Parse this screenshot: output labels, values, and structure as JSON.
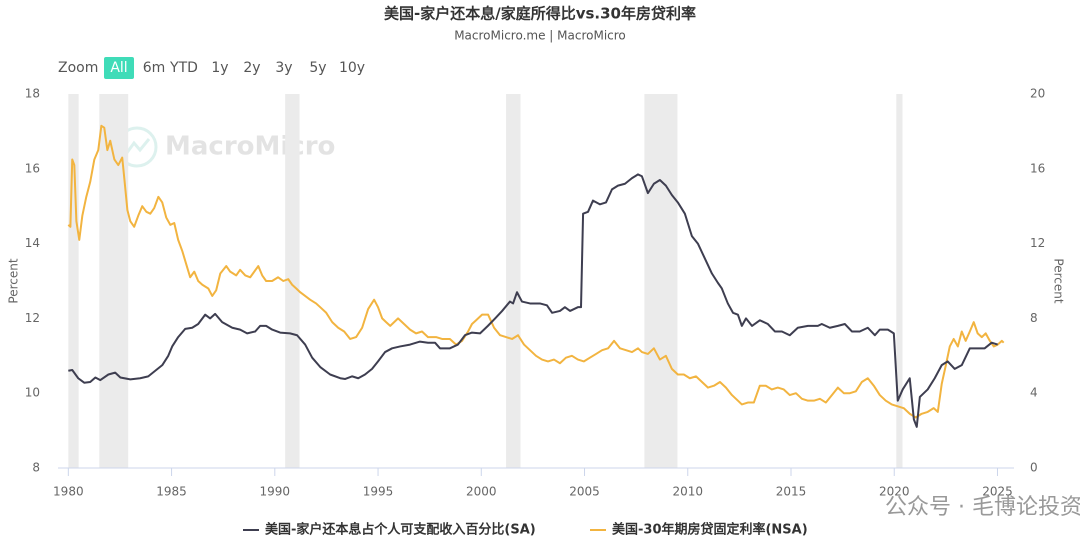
{
  "chart_data": {
    "type": "line",
    "title": "美国-家户还本息/家庭所得比vs.30年房贷利率",
    "subtitle": "MacroMicro.me | MacroMicro",
    "range_selector": {
      "label": "Zoom",
      "buttons": [
        "All",
        "6m",
        "YTD",
        "1y",
        "2y",
        "3y",
        "5y",
        "10y"
      ],
      "selected": 0
    },
    "watermarks": [
      "MacroMicro",
      "公众号 · 毛博论投资"
    ],
    "y_label": "Percent",
    "y2_label": "Percent",
    "xlim": [
      1979.5,
      2025.8
    ],
    "xticks": [
      1980,
      1985,
      1990,
      1995,
      2000,
      2005,
      2010,
      2015,
      2020,
      2025
    ],
    "ylim": [
      8,
      18
    ],
    "yticks": [
      8,
      10,
      12,
      14,
      16,
      18
    ],
    "y2lim": [
      0,
      20
    ],
    "y2ticks": [
      0,
      4,
      8,
      12,
      16,
      20
    ],
    "grid": false,
    "recession_color": "#ebebeb",
    "recessions": [
      [
        1980.0,
        1980.5
      ],
      [
        1981.5,
        1982.9
      ],
      [
        1990.5,
        1991.2
      ],
      [
        2001.2,
        2001.9
      ],
      [
        2007.9,
        2009.5
      ],
      [
        2020.1,
        2020.4
      ]
    ],
    "series": [
      {
        "name": "美国-家户还本息占个人可支配收入百分比(SA)",
        "color": "#3e3e50",
        "axis": "y",
        "x": [
          1980.0,
          1980.19,
          1980.48,
          1980.77,
          1981.06,
          1981.31,
          1981.55,
          1981.94,
          1982.27,
          1982.52,
          1983.0,
          1983.48,
          1983.87,
          1984.21,
          1984.55,
          1984.84,
          1985.03,
          1985.32,
          1985.66,
          1986.0,
          1986.29,
          1986.63,
          1986.87,
          1987.11,
          1987.45,
          1987.94,
          1988.32,
          1988.66,
          1989.05,
          1989.29,
          1989.58,
          1989.87,
          1990.26,
          1990.74,
          1991.08,
          1991.47,
          1991.81,
          1992.2,
          1992.68,
          1993.17,
          1993.41,
          1993.75,
          1994.04,
          1994.37,
          1994.71,
          1995.0,
          1995.34,
          1995.68,
          1996.07,
          1996.55,
          1997.03,
          1997.42,
          1997.76,
          1998.0,
          1998.48,
          1998.87,
          1999.21,
          1999.55,
          1999.94,
          2000.32,
          2000.67,
          2001.01,
          2001.39,
          2001.54,
          2001.73,
          2001.97,
          2002.36,
          2002.84,
          2003.18,
          2003.43,
          2003.81,
          2004.05,
          2004.3,
          2004.68,
          2004.83,
          2004.93,
          2005.17,
          2005.41,
          2005.75,
          2006.04,
          2006.33,
          2006.62,
          2006.96,
          2007.3,
          2007.59,
          2007.78,
          2008.07,
          2008.36,
          2008.65,
          2008.94,
          2009.23,
          2009.52,
          2009.86,
          2010.2,
          2010.49,
          2010.83,
          2011.17,
          2011.46,
          2011.65,
          2011.94,
          2012.19,
          2012.43,
          2012.62,
          2012.82,
          2013.11,
          2013.49,
          2013.88,
          2014.22,
          2014.56,
          2014.94,
          2015.33,
          2015.82,
          2016.3,
          2016.49,
          2016.88,
          2017.27,
          2017.61,
          2017.95,
          2018.33,
          2018.72,
          2019.06,
          2019.3,
          2019.69,
          2019.98,
          2020.17,
          2020.41,
          2020.75,
          2020.95,
          2021.09,
          2021.24,
          2021.62,
          2021.96,
          2022.3,
          2022.59,
          2022.93,
          2023.27,
          2023.66,
          2024.04,
          2024.38,
          2024.72,
          2025.01
        ],
        "values": [
          10.6,
          10.62,
          10.4,
          10.28,
          10.3,
          10.42,
          10.35,
          10.5,
          10.55,
          10.42,
          10.37,
          10.4,
          10.45,
          10.6,
          10.75,
          11.0,
          11.25,
          11.5,
          11.72,
          11.75,
          11.85,
          12.1,
          12.0,
          12.12,
          11.9,
          11.75,
          11.7,
          11.6,
          11.65,
          11.8,
          11.8,
          11.7,
          11.62,
          11.6,
          11.55,
          11.3,
          10.95,
          10.7,
          10.5,
          10.4,
          10.38,
          10.45,
          10.4,
          10.5,
          10.65,
          10.85,
          11.1,
          11.2,
          11.25,
          11.3,
          11.38,
          11.35,
          11.35,
          11.2,
          11.2,
          11.3,
          11.55,
          11.62,
          11.6,
          11.8,
          12.0,
          12.2,
          12.45,
          12.4,
          12.7,
          12.45,
          12.4,
          12.4,
          12.35,
          12.15,
          12.2,
          12.3,
          12.2,
          12.3,
          12.3,
          14.8,
          14.85,
          15.15,
          15.05,
          15.1,
          15.45,
          15.55,
          15.6,
          15.75,
          15.85,
          15.8,
          15.35,
          15.6,
          15.7,
          15.55,
          15.3,
          15.1,
          14.8,
          14.2,
          14.0,
          13.6,
          13.2,
          12.95,
          12.8,
          12.4,
          12.15,
          12.1,
          11.8,
          12.0,
          11.8,
          11.95,
          11.85,
          11.65,
          11.65,
          11.55,
          11.75,
          11.8,
          11.8,
          11.85,
          11.75,
          11.8,
          11.85,
          11.65,
          11.65,
          11.75,
          11.55,
          11.7,
          11.7,
          11.6,
          9.8,
          10.1,
          10.4,
          9.3,
          9.1,
          9.9,
          10.1,
          10.4,
          10.75,
          10.85,
          10.65,
          10.75,
          11.2,
          11.2,
          11.2,
          11.35,
          11.3
        ]
      },
      {
        "name": "美国-30年期房贷固定利率(NSA)",
        "color": "#f2b440",
        "axis": "y2",
        "x": [
          1980.0,
          1980.1,
          1980.19,
          1980.29,
          1980.39,
          1980.53,
          1980.68,
          1980.87,
          1981.06,
          1981.26,
          1981.45,
          1981.6,
          1981.74,
          1981.89,
          1982.03,
          1982.23,
          1982.42,
          1982.61,
          1982.71,
          1982.86,
          1983.0,
          1983.19,
          1983.39,
          1983.58,
          1983.78,
          1983.97,
          1984.16,
          1984.36,
          1984.55,
          1984.74,
          1984.94,
          1985.13,
          1985.32,
          1985.52,
          1985.71,
          1985.9,
          1986.1,
          1986.29,
          1986.49,
          1986.78,
          1986.97,
          1987.16,
          1987.36,
          1987.65,
          1987.84,
          1988.13,
          1988.32,
          1988.57,
          1988.81,
          1989.2,
          1989.39,
          1989.58,
          1989.87,
          1990.16,
          1990.41,
          1990.65,
          1990.84,
          1991.04,
          1991.23,
          1991.47,
          1991.71,
          1992.0,
          1992.2,
          1992.49,
          1992.78,
          1993.07,
          1993.36,
          1993.65,
          1993.94,
          1994.23,
          1994.52,
          1994.81,
          1995.0,
          1995.2,
          1995.39,
          1995.59,
          1995.78,
          1995.97,
          1996.26,
          1996.55,
          1996.84,
          1997.13,
          1997.42,
          1997.81,
          1998.1,
          1998.48,
          1998.78,
          1999.07,
          1999.36,
          1999.55,
          1999.75,
          2000.04,
          2000.33,
          2000.62,
          2000.91,
          2001.2,
          2001.49,
          2001.78,
          2002.07,
          2002.36,
          2002.65,
          2002.94,
          2003.23,
          2003.52,
          2003.81,
          2004.1,
          2004.39,
          2004.68,
          2004.97,
          2005.26,
          2005.56,
          2005.85,
          2006.14,
          2006.43,
          2006.72,
          2007.01,
          2007.3,
          2007.59,
          2007.78,
          2008.07,
          2008.36,
          2008.65,
          2008.94,
          2009.23,
          2009.52,
          2009.81,
          2010.1,
          2010.4,
          2010.69,
          2010.98,
          2011.27,
          2011.56,
          2011.85,
          2012.14,
          2012.43,
          2012.62,
          2012.91,
          2013.2,
          2013.49,
          2013.78,
          2014.07,
          2014.36,
          2014.65,
          2014.94,
          2015.24,
          2015.53,
          2015.82,
          2016.11,
          2016.4,
          2016.69,
          2016.98,
          2017.27,
          2017.56,
          2017.85,
          2018.14,
          2018.43,
          2018.72,
          2019.01,
          2019.3,
          2019.59,
          2019.88,
          2020.17,
          2020.46,
          2020.75,
          2021.04,
          2021.33,
          2021.62,
          2021.91,
          2022.11,
          2022.3,
          2022.5,
          2022.69,
          2022.88,
          2023.08,
          2023.27,
          2023.46,
          2023.66,
          2023.85,
          2024.04,
          2024.24,
          2024.43,
          2024.63,
          2024.82,
          2025.01,
          2025.21,
          2025.3
        ],
        "values": [
          13.0,
          12.9,
          16.5,
          16.2,
          13.2,
          12.2,
          13.5,
          14.5,
          15.3,
          16.5,
          17.0,
          18.3,
          18.2,
          17.0,
          17.5,
          16.5,
          16.2,
          16.6,
          15.5,
          13.8,
          13.2,
          12.9,
          13.5,
          14.0,
          13.7,
          13.6,
          13.9,
          14.5,
          14.2,
          13.4,
          13.0,
          13.1,
          12.2,
          11.6,
          10.9,
          10.2,
          10.5,
          10.0,
          9.8,
          9.6,
          9.2,
          9.5,
          10.4,
          10.8,
          10.5,
          10.3,
          10.6,
          10.3,
          10.2,
          10.8,
          10.3,
          10.0,
          10.0,
          10.2,
          10.0,
          10.1,
          9.8,
          9.6,
          9.4,
          9.2,
          9.0,
          8.8,
          8.6,
          8.3,
          7.8,
          7.5,
          7.3,
          6.9,
          7.0,
          7.5,
          8.5,
          9.0,
          8.6,
          8.0,
          7.8,
          7.6,
          7.8,
          8.0,
          7.7,
          7.4,
          7.2,
          7.3,
          7.0,
          7.0,
          6.9,
          6.9,
          6.6,
          6.8,
          7.3,
          7.7,
          7.9,
          8.2,
          8.2,
          7.5,
          7.1,
          7.0,
          6.9,
          7.1,
          6.6,
          6.3,
          6.0,
          5.8,
          5.7,
          5.8,
          5.6,
          5.9,
          6.0,
          5.8,
          5.7,
          5.9,
          6.1,
          6.3,
          6.4,
          6.8,
          6.4,
          6.3,
          6.2,
          6.4,
          6.2,
          6.1,
          6.4,
          5.8,
          6.0,
          5.3,
          5.0,
          5.0,
          4.8,
          4.9,
          4.6,
          4.3,
          4.4,
          4.6,
          4.3,
          3.9,
          3.6,
          3.4,
          3.5,
          3.5,
          4.4,
          4.4,
          4.2,
          4.3,
          4.2,
          3.9,
          4.0,
          3.7,
          3.6,
          3.6,
          3.7,
          3.5,
          3.9,
          4.3,
          4.0,
          4.0,
          4.1,
          4.6,
          4.8,
          4.4,
          3.9,
          3.6,
          3.4,
          3.3,
          3.2,
          2.9,
          2.7,
          2.9,
          3.0,
          3.2,
          3.0,
          4.5,
          5.5,
          6.5,
          6.9,
          6.5,
          7.3,
          6.8,
          7.3,
          7.8,
          7.2,
          7.0,
          7.2,
          6.8,
          6.5,
          6.6,
          6.8,
          6.7
        ]
      }
    ]
  }
}
